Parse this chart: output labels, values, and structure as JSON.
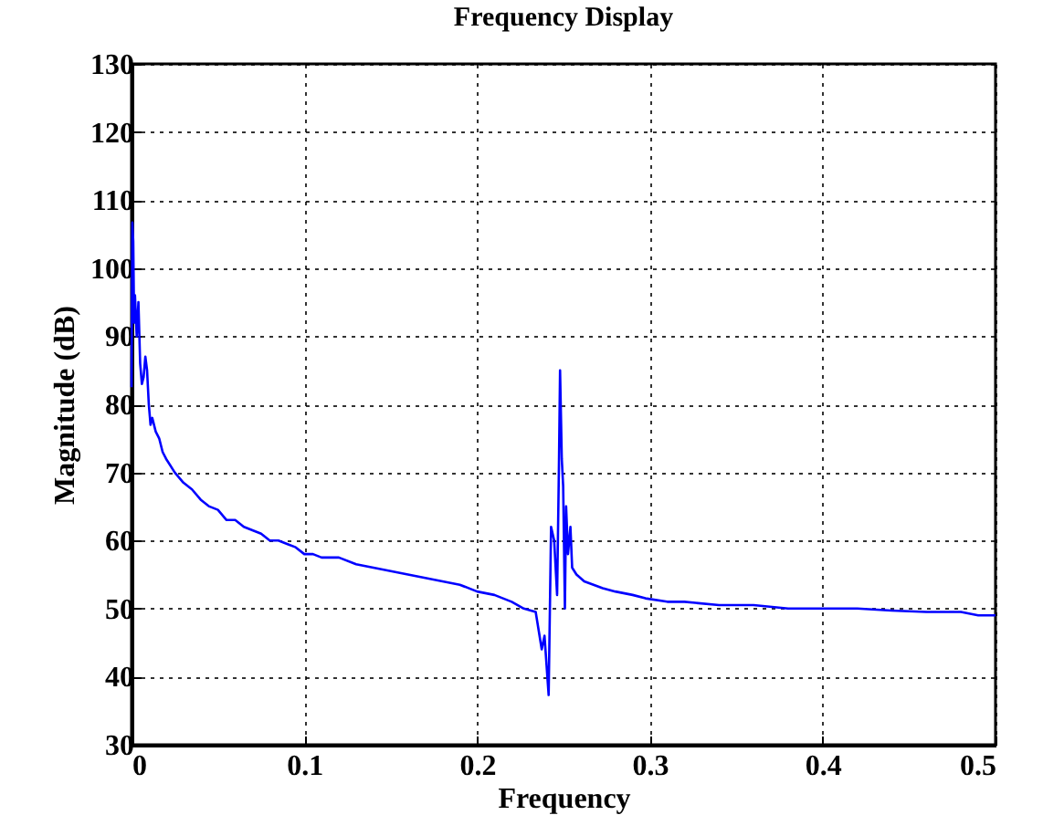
{
  "chart_data": {
    "type": "line",
    "title": "Frequency Display",
    "xlabel": "Frequency",
    "ylabel": "Magnitude (dB)",
    "xlim": [
      0,
      0.5
    ],
    "ylim": [
      30,
      130
    ],
    "xticks": [
      0,
      0.1,
      0.2,
      0.3,
      0.4,
      0.5
    ],
    "yticks": [
      30,
      40,
      50,
      60,
      70,
      80,
      90,
      100,
      110,
      120,
      130
    ],
    "grid": true,
    "series": [
      {
        "color": "#0000ff",
        "x": [
          0,
          0.0005,
          0.001,
          0.0015,
          0.002,
          0.003,
          0.004,
          0.005,
          0.006,
          0.007,
          0.008,
          0.009,
          0.01,
          0.011,
          0.012,
          0.014,
          0.016,
          0.018,
          0.02,
          0.025,
          0.03,
          0.035,
          0.04,
          0.045,
          0.05,
          0.055,
          0.06,
          0.065,
          0.07,
          0.075,
          0.08,
          0.085,
          0.09,
          0.095,
          0.1,
          0.105,
          0.11,
          0.12,
          0.13,
          0.14,
          0.15,
          0.16,
          0.17,
          0.18,
          0.19,
          0.2,
          0.21,
          0.22,
          0.227,
          0.2339,
          0.2374,
          0.239,
          0.2414,
          0.2428,
          0.2446,
          0.2463,
          0.2473,
          0.248,
          0.249,
          0.2498,
          0.2508,
          0.2515,
          0.2526,
          0.254,
          0.255,
          0.2575,
          0.262,
          0.2727,
          0.28,
          0.29,
          0.2974,
          0.31,
          0.32,
          0.34,
          0.36,
          0.38,
          0.4,
          0.42,
          0.44,
          0.46,
          0.48,
          0.49,
          0.5
        ],
        "values": [
          82.5,
          106.7,
          104,
          92,
          96,
          90,
          95,
          86,
          83,
          84,
          87,
          85,
          80,
          77,
          78,
          76,
          75,
          73,
          72,
          70,
          68.5,
          67.5,
          66,
          65,
          64.5,
          63,
          63,
          62,
          61.5,
          61,
          60,
          60,
          59.5,
          59,
          58,
          58,
          57.5,
          57.5,
          56.5,
          56,
          55.5,
          55,
          54.5,
          54,
          53.5,
          52.5,
          52,
          51,
          50,
          49.5,
          44,
          46,
          37.3,
          62,
          60,
          52,
          70,
          85,
          72,
          68,
          50,
          65,
          58,
          62,
          56,
          55,
          54,
          53,
          52.5,
          52,
          51.5,
          51,
          51,
          50.5,
          50.5,
          50,
          50,
          50,
          49.7,
          49.5,
          49.5,
          49,
          49
        ]
      }
    ]
  }
}
